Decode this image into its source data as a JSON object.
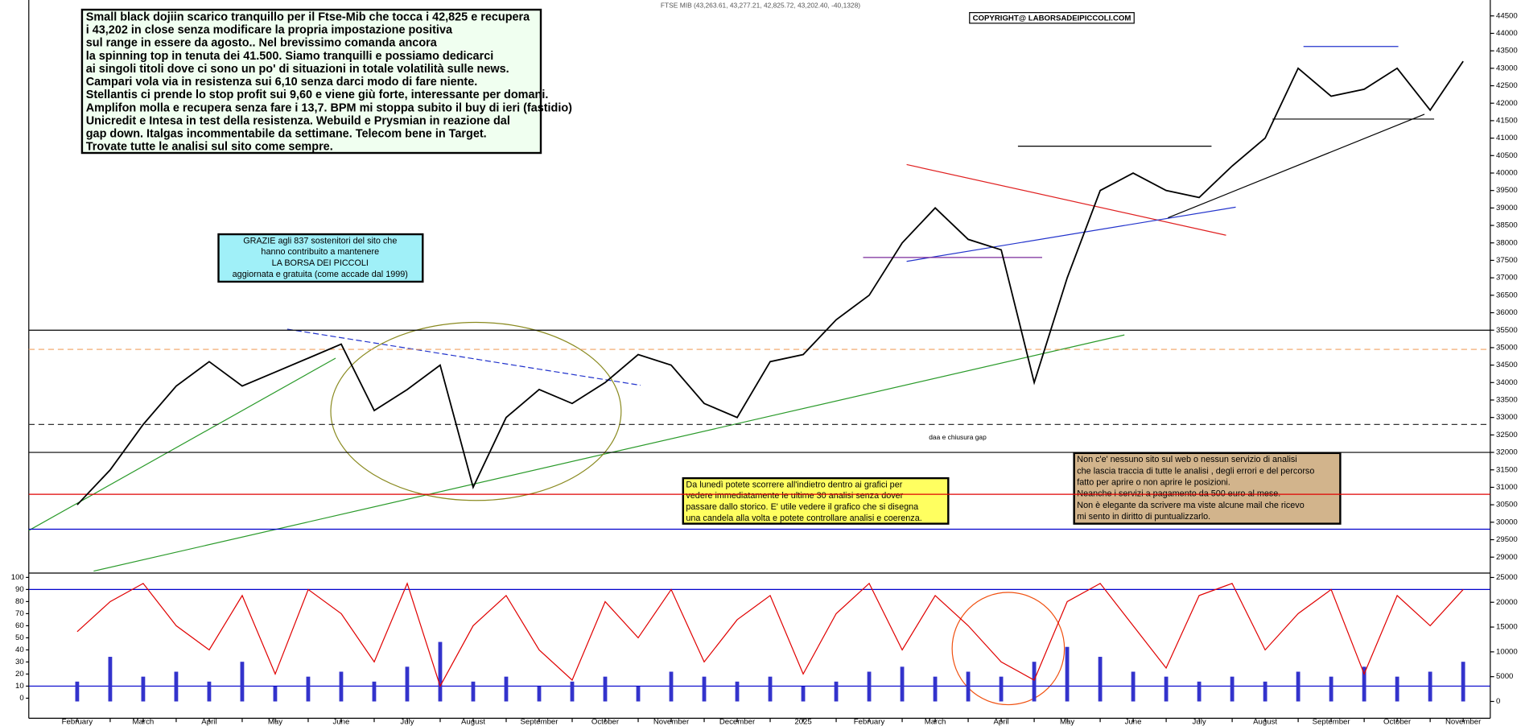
{
  "header": "FTSE MIB (43,263.61, 43,277.21, 42,825.72, 43,202.40, -40,1328)",
  "copyright": "COPYRIGHT@ LABORSADEIPICCOLI.COM",
  "notes": {
    "main": [
      "Small black dojiin scarico tranquillo per il Ftse-Mib che tocca i 42,825 e recupera",
      "i 43,202 in close  senza modificare la propria impostazione positiva",
      "sul range in essere da agosto.. Nel brevissimo comanda ancora",
      "la spinning top in tenuta dei 41.500. Siamo tranquilli e possiamo dedicarci",
      "ai singoli titoli dove ci sono un po' di situazioni in totale volatilità sulle news.",
      "Campari vola via in resistenza sui 6,10 senza darci modo di fare niente.",
      "Stellantis ci prende lo stop profit sui 9,60 e viene giù forte, interessante per domani.",
      "Amplifon molla e recupera senza fare i 13,7. BPM mi stoppa subito il buy di ieri (fastidio)",
      "Unicredit e Intesa in test della resistenza. Webuild e Prysmian in reazione dal",
      "gap down.  Italgas incommentabile da settimane. Telecom bene in Target.",
      "Trovate tutte le analisi sul sito come sempre."
    ],
    "thanks": [
      "GRAZIE  agli 837  sostenitori del sito che",
      "hanno contribuito a mantenere",
      "LA BORSA DEI PICCOLI",
      "aggiornata e gratuita (come accade dal 1999)"
    ],
    "yellow": [
      "Da lunedì potete scorrere all'indietro dentro ai grafici per",
      "vedere immediatamente le ultime 30 analisi senza dover",
      "passare dallo storico.  E' utile vedere il grafico che si disegna",
      "una candela alla volta e potete controllare analisi e coerenza."
    ],
    "brown": [
      "Non c'e' nessuno sito sul web o nessun servizio di analisi",
      "che lascia traccia di tutte le analisi , degli errori e del percorso",
      "fatto per aprire o non aprire le posizioni.",
      "Neanche i servizi a pagamento da 500 euro al mese.",
      "Non è elegante da scrivere ma viste alcune mail che ricevo",
      "mi sento in diritto di puntualizzarlo."
    ],
    "gap": "daa e chiusura gap"
  },
  "chart_data": [
    {
      "type": "line",
      "categories": [
        "February",
        null,
        "March",
        null,
        "April",
        null,
        "May",
        null,
        "June",
        null,
        "July",
        null,
        "August",
        null,
        "September",
        null,
        "October",
        null,
        "November",
        null,
        "December",
        null,
        "2025",
        null,
        "February",
        null,
        "March",
        null,
        "April",
        null,
        "May",
        null,
        "June",
        null,
        "July",
        null,
        "August",
        null,
        "September",
        null,
        "October",
        null,
        "November"
      ],
      "series": [
        {
          "color": "#000000",
          "values": [
            30500,
            31500,
            32800,
            33900,
            34600,
            33900,
            34300,
            34700,
            35100,
            33200,
            33800,
            34500,
            31000,
            33000,
            33800,
            33400,
            34000,
            34800,
            34500,
            33400,
            33000,
            34600,
            34800,
            35800,
            36500,
            38000,
            39000,
            38100,
            37800,
            34000,
            37000,
            39500,
            40000,
            39500,
            39300,
            40200,
            41000,
            43000,
            42200,
            42400,
            43000,
            41800,
            43200
          ]
        }
      ],
      "ylim": [
        28600,
        44900
      ],
      "yticks": [
        29000,
        29500,
        30000,
        30500,
        31000,
        31500,
        32000,
        32500,
        33000,
        33500,
        34000,
        34500,
        35000,
        35500,
        36000,
        36500,
        37000,
        37500,
        38000,
        38500,
        39000,
        39500,
        40000,
        40500,
        41000,
        41500,
        42000,
        42500,
        43000,
        43500,
        44000,
        44500
      ],
      "levels": [
        {
          "value": 35500,
          "color": "#000000"
        },
        {
          "value": 32000,
          "color": "#000000"
        },
        {
          "value": 30800,
          "color": "#e00000"
        },
        {
          "value": 29800,
          "color": "#0000cc"
        },
        {
          "value": 32800,
          "color": "#333333",
          "dash": true
        },
        {
          "value": 34950,
          "color": "#f0a060",
          "dash": true
        }
      ]
    },
    {
      "type": "combo",
      "series": [
        {
          "type": "bar",
          "color": "#3333cc",
          "axis": "y2",
          "values": [
            4000,
            9000,
            5000,
            6000,
            4000,
            8000,
            3000,
            5000,
            6000,
            4000,
            7000,
            12000,
            4000,
            5000,
            3000,
            4000,
            5000,
            3000,
            6000,
            5000,
            4000,
            5000,
            3000,
            4000,
            6000,
            7000,
            5000,
            6000,
            5000,
            8000,
            11000,
            9000,
            6000,
            5000,
            4000,
            5000,
            4000,
            6000,
            5000,
            7000,
            5000,
            6000,
            8000
          ]
        },
        {
          "type": "line",
          "color": "#e00000",
          "values": [
            55,
            80,
            95,
            60,
            40,
            85,
            20,
            90,
            70,
            30,
            95,
            10,
            60,
            85,
            40,
            15,
            80,
            50,
            90,
            30,
            65,
            85,
            20,
            70,
            95,
            40,
            85,
            60,
            30,
            15,
            80,
            95,
            60,
            25,
            85,
            95,
            40,
            70,
            90,
            20,
            85,
            60,
            90
          ]
        }
      ],
      "ylim": [
        -15,
        102
      ],
      "yticks": [
        0,
        10,
        20,
        30,
        40,
        50,
        60,
        70,
        80,
        90,
        100
      ],
      "y2lim": [
        -3000,
        25500
      ],
      "y2ticks": [
        0,
        5000,
        10000,
        15000,
        20000,
        25000
      ],
      "levels": [
        {
          "value": 10,
          "color": "#0000cc"
        },
        {
          "value": 90,
          "color": "#0000cc"
        }
      ]
    }
  ]
}
